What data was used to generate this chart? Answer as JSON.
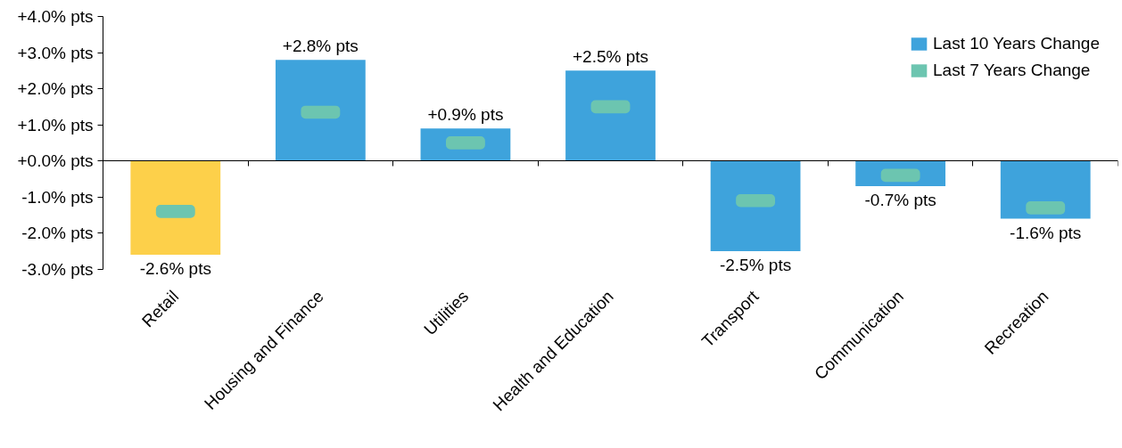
{
  "chart_data": {
    "type": "bar",
    "categories": [
      "Retail",
      "Housing and Finance",
      "Utilities",
      "Health and Education",
      "Transport",
      "Communication",
      "Recreation"
    ],
    "series": [
      {
        "name": "Last 10 Years Change",
        "type": "bar",
        "color": "#3ea3dc",
        "colors": [
          "#fdd04a",
          "#3ea3dc",
          "#3ea3dc",
          "#3ea3dc",
          "#3ea3dc",
          "#3ea3dc",
          "#3ea3dc"
        ],
        "values": [
          -2.6,
          2.8,
          0.9,
          2.5,
          -2.5,
          -0.7,
          -1.6
        ],
        "value_labels": [
          "-2.6% pts",
          "+2.8% pts",
          "+0.9% pts",
          "+2.5% pts",
          "-2.5% pts",
          "-0.7% pts",
          "-1.6% pts"
        ]
      },
      {
        "name": "Last 7 Years Change",
        "type": "scatter",
        "marker": "square",
        "color": "#6cc5b0",
        "values": [
          -1.4,
          1.35,
          0.5,
          1.5,
          -1.1,
          -0.4,
          -1.3
        ]
      }
    ],
    "ylim": [
      -3,
      4
    ],
    "yticks": [
      {
        "value": 4,
        "label": "+4.0% pts"
      },
      {
        "value": 3,
        "label": "+3.0% pts"
      },
      {
        "value": 2,
        "label": "+2.0% pts"
      },
      {
        "value": 1,
        "label": "+1.0% pts"
      },
      {
        "value": 0,
        "label": "+0.0% pts"
      },
      {
        "value": -1,
        "label": "-1.0% pts"
      },
      {
        "value": -2,
        "label": "-2.0% pts"
      },
      {
        "value": -3,
        "label": "-3.0% pts"
      }
    ],
    "legend": "top right"
  }
}
